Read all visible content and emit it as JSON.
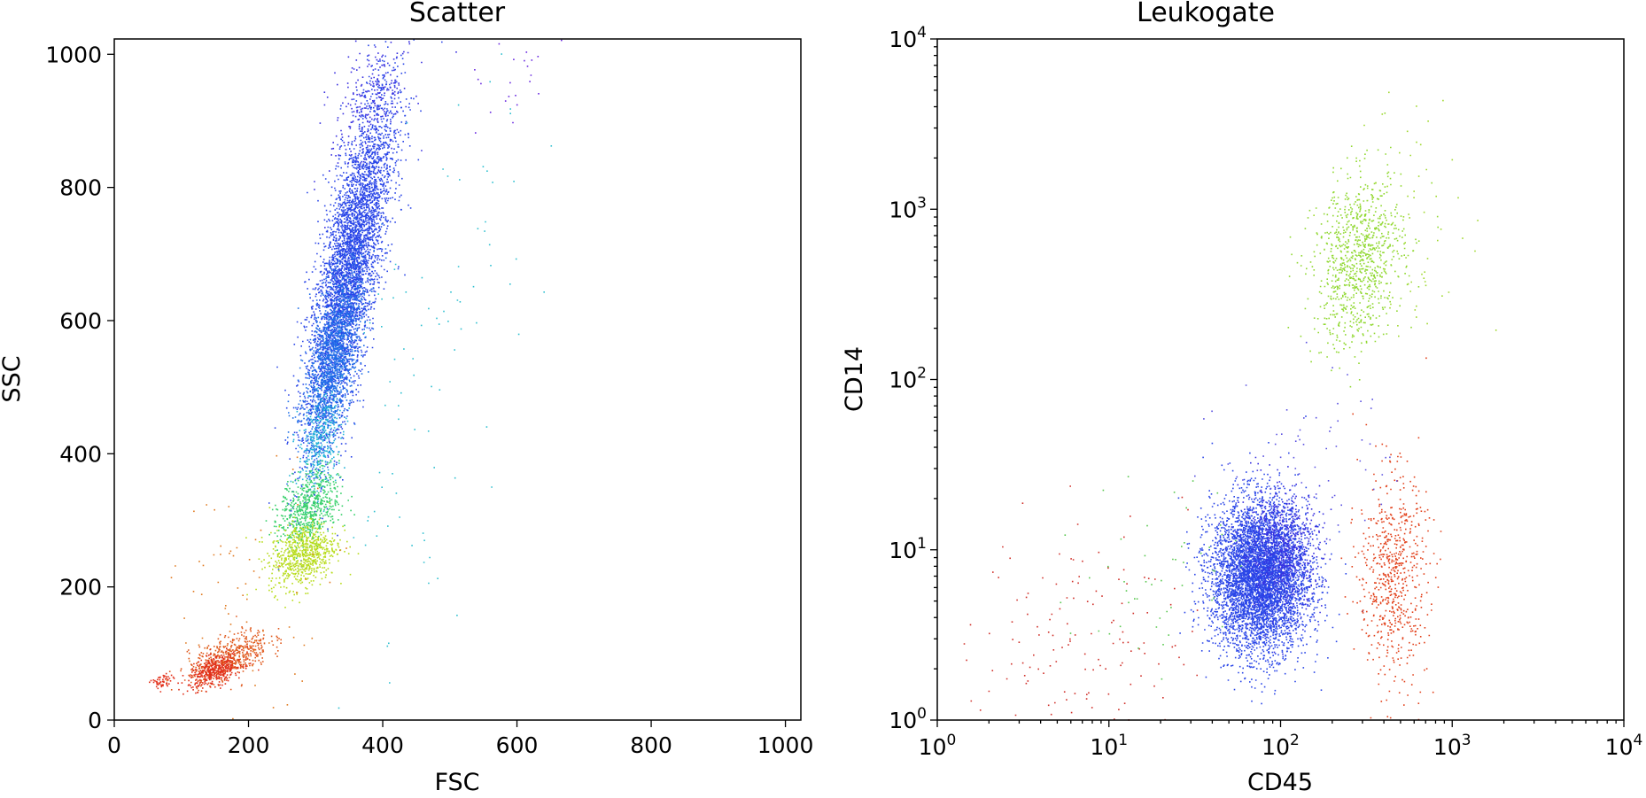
{
  "chart_data": [
    {
      "type": "scatter",
      "title": "Scatter",
      "xlabel": "FSC",
      "ylabel": "SSC",
      "xlim": [
        0,
        1023
      ],
      "ylim": [
        0,
        1023
      ],
      "xscale": "linear",
      "yscale": "linear",
      "xticks": [
        0,
        200,
        400,
        600,
        800,
        1000
      ],
      "yticks": [
        0,
        200,
        400,
        600,
        800,
        1000
      ],
      "xtick_labels": [
        "0",
        "200",
        "400",
        "600",
        "800",
        "1000"
      ],
      "ytick_labels": [
        "0",
        "200",
        "400",
        "600",
        "800",
        "1000"
      ],
      "grid": false,
      "legend": "none",
      "colormap": "rainbow (density)",
      "populations": [
        {
          "color": "#2a46e8",
          "cx": 350,
          "cy": 680,
          "sx": 32,
          "sy": 130,
          "rho": 0.75,
          "n": 4500
        },
        {
          "color": "#1f6fe8",
          "cx": 325,
          "cy": 540,
          "sx": 22,
          "sy": 70,
          "rho": 0.6,
          "n": 1400
        },
        {
          "color": "#23b4d8",
          "cx": 305,
          "cy": 420,
          "sx": 16,
          "sy": 35,
          "rho": 0.4,
          "n": 300
        },
        {
          "color": "#36d06a",
          "cx": 290,
          "cy": 320,
          "sx": 22,
          "sy": 28,
          "rho": 0.3,
          "n": 600
        },
        {
          "color": "#b8dc1c",
          "cx": 280,
          "cy": 250,
          "sx": 25,
          "sy": 25,
          "rho": 0.3,
          "n": 700
        },
        {
          "color": "#e05a1e",
          "cx": 170,
          "cy": 95,
          "sx": 30,
          "sy": 20,
          "rho": 0.6,
          "n": 500
        },
        {
          "color": "#e2301a",
          "cx": 150,
          "cy": 75,
          "sx": 20,
          "sy": 12,
          "rho": 0.5,
          "n": 400
        },
        {
          "color": "#e2301a",
          "cx": 70,
          "cy": 58,
          "sx": 8,
          "sy": 6,
          "rho": 0.2,
          "n": 60
        },
        {
          "color": "#3a30e0",
          "cx": 380,
          "cy": 930,
          "sx": 30,
          "sy": 55,
          "rho": 0.5,
          "n": 250
        },
        {
          "color": "#30c0d0",
          "cx": 470,
          "cy": 520,
          "sx": 70,
          "sy": 200,
          "rho": 0.5,
          "n": 90
        },
        {
          "color": "#6a2ae0",
          "cx": 600,
          "cy": 950,
          "sx": 30,
          "sy": 40,
          "rho": 0.3,
          "n": 25
        },
        {
          "color": "#e07a20",
          "cx": 200,
          "cy": 200,
          "sx": 70,
          "sy": 90,
          "rho": 0.3,
          "n": 70
        }
      ]
    },
    {
      "type": "scatter",
      "title": "Leukogate",
      "xlabel": "CD45",
      "ylabel": "CD14",
      "xlim": [
        1,
        10000
      ],
      "ylim": [
        1,
        10000
      ],
      "xscale": "log",
      "yscale": "log",
      "xticks": [
        1,
        10,
        100,
        1000,
        10000
      ],
      "yticks": [
        1,
        10,
        100,
        1000,
        10000
      ],
      "tick_base": "10",
      "tick_exponents": [
        "0",
        "1",
        "2",
        "3",
        "4"
      ],
      "grid": false,
      "legend": "none",
      "colormap": "rainbow (density)",
      "populations": [
        {
          "color": "#2a46e8",
          "cx": 75,
          "cy": 7,
          "sx": 0.14,
          "sy": 0.22,
          "rho": 0.0,
          "n": 5500
        },
        {
          "color": "#3a30e0",
          "cx": 100,
          "cy": 10,
          "sx": 0.12,
          "sy": 0.18,
          "rho": 0.0,
          "n": 700
        },
        {
          "color": "#90d830",
          "cx": 280,
          "cy": 500,
          "sx": 0.13,
          "sy": 0.25,
          "rho": 0.2,
          "n": 900
        },
        {
          "color": "#e2401a",
          "cx": 450,
          "cy": 7,
          "sx": 0.1,
          "sy": 0.3,
          "rho": 0.0,
          "n": 650
        },
        {
          "color": "#d0302a",
          "cx": 7,
          "cy": 3,
          "sx": 0.3,
          "sy": 0.35,
          "rho": 0.0,
          "n": 140
        },
        {
          "color": "#5ac850",
          "cx": 20,
          "cy": 8,
          "sx": 0.25,
          "sy": 0.3,
          "rho": 0.0,
          "n": 50
        },
        {
          "color": "#5a50e0",
          "cx": 150,
          "cy": 40,
          "sx": 0.25,
          "sy": 0.25,
          "rho": 0.0,
          "n": 60
        },
        {
          "color": "#a0d830",
          "cx": 600,
          "cy": 800,
          "sx": 0.2,
          "sy": 0.35,
          "rho": 0.0,
          "n": 70
        }
      ]
    }
  ]
}
